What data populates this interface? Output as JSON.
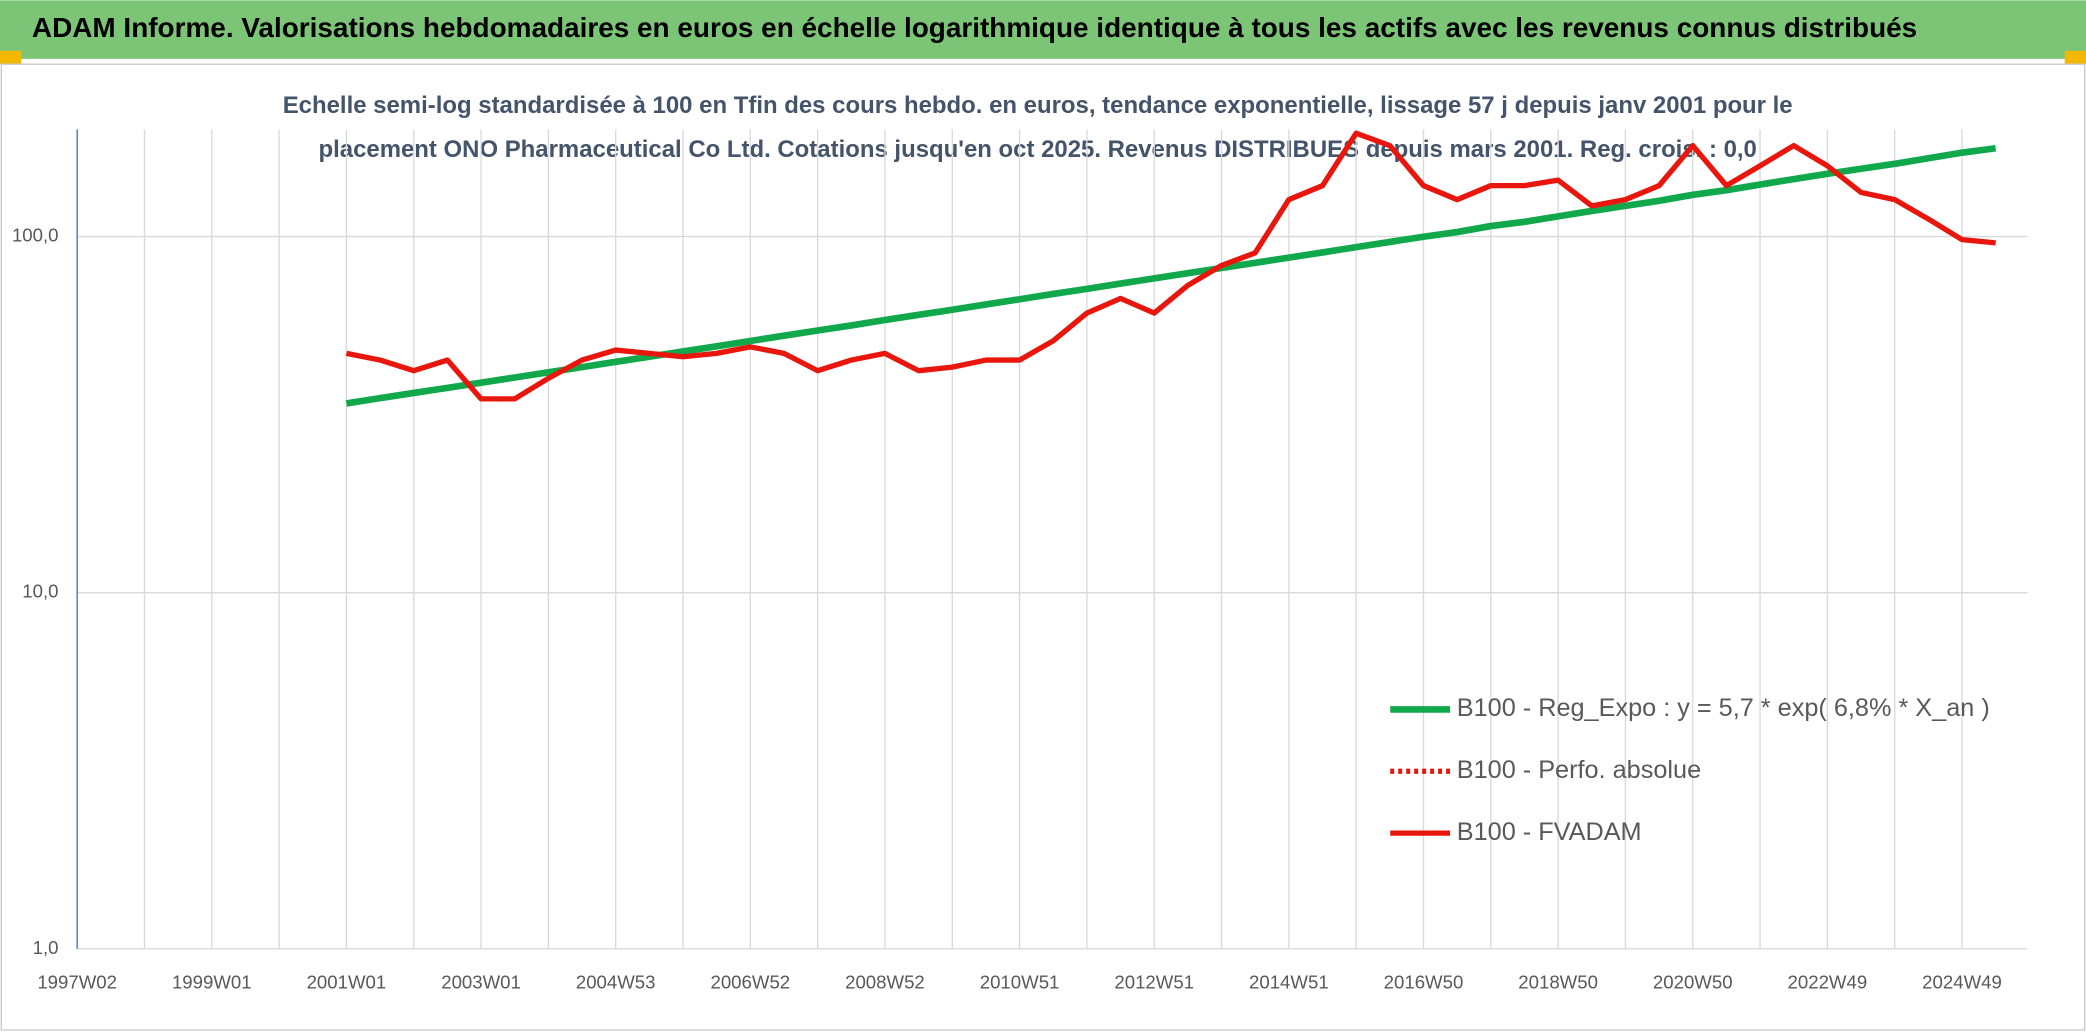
{
  "chart_data": {
    "type": "line",
    "title": "ADAM Informe. Valorisations hebdomadaires en euros en échelle logarithmique identique à tous les actifs avec les revenus connus distribués",
    "subtitle": [
      "Echelle semi-log standardisée à 100 en Tfin des cours hebdo. en euros, tendance exponentielle, lissage 57 j depuis janv 2001 pour le",
      "placement ONO Pharmaceutical Co Ltd. Cotations jusqu'en oct 2025. Revenus DISTRIBUES depuis mars 2001. Reg. crois. : 0,0"
    ],
    "categories": [
      "1997W02",
      null,
      null,
      null,
      "1999W01",
      null,
      null,
      null,
      "2001W01",
      null,
      null,
      null,
      "2003W01",
      null,
      null,
      null,
      "2004W53",
      null,
      null,
      null,
      "2006W52",
      null,
      null,
      null,
      "2008W52",
      null,
      null,
      null,
      "2010W51",
      null,
      null,
      null,
      "2012W51",
      null,
      null,
      null,
      "2014W51",
      null,
      null,
      null,
      "2016W50",
      null,
      null,
      null,
      "2018W50",
      null,
      null,
      null,
      "2020W50",
      null,
      null,
      null,
      "2022W49",
      null,
      null,
      null,
      "2024W49",
      null
    ],
    "log_scale": true,
    "grid": true,
    "legend_position": "right",
    "ylim": [
      1,
      200
    ],
    "yticks": [
      {
        "value": 1,
        "label": "1,0"
      },
      {
        "value": 10,
        "label": "10,0"
      },
      {
        "value": 100,
        "label": "100,0"
      }
    ],
    "series": [
      {
        "name": "B100 - Reg_Expo : y = 5,7 * exp( 6,8% *  X_an )",
        "color": "#11a84c",
        "style": "solid",
        "values": [
          null,
          null,
          null,
          null,
          null,
          null,
          null,
          null,
          34,
          35.2,
          36.4,
          37.6,
          38.9,
          40.2,
          41.6,
          43,
          44.5,
          46,
          47.6,
          49.2,
          50.9,
          52.7,
          54.5,
          56.3,
          58.3,
          60.3,
          62.3,
          64.5,
          66.7,
          69,
          71.3,
          73.8,
          76.3,
          78.9,
          81.6,
          84.4,
          87.3,
          90.3,
          93.4,
          96.6,
          99.9,
          103,
          107,
          110,
          114,
          118,
          122,
          126,
          131,
          135,
          140,
          145,
          150,
          155,
          160,
          166,
          172,
          177
        ]
      },
      {
        "name": "B100 - Perfo. absolue",
        "color": "#e8160c",
        "style": "dotted",
        "values": [
          null,
          null,
          null,
          null,
          null,
          null,
          null,
          null,
          null,
          null,
          null,
          null,
          null,
          null,
          null,
          null,
          null,
          null,
          null,
          null,
          null,
          null,
          null,
          null,
          null,
          null,
          null,
          null,
          null,
          null,
          null,
          null,
          null,
          null,
          null,
          null,
          null,
          null,
          null,
          null,
          null,
          null,
          null,
          null,
          null,
          null,
          null,
          null,
          null,
          null,
          null,
          null,
          null,
          null,
          null,
          null,
          null,
          null
        ]
      },
      {
        "name": "B100 - FVADAM",
        "color": "#e8160c",
        "style": "solid",
        "values": [
          null,
          null,
          null,
          null,
          null,
          null,
          null,
          null,
          47,
          45,
          42,
          45,
          35,
          35,
          40,
          45,
          48,
          47,
          46,
          47,
          49,
          47,
          42,
          45,
          47,
          42,
          43,
          45,
          45,
          51,
          61,
          67,
          61,
          73,
          83,
          90,
          127,
          139,
          195,
          180,
          139,
          127,
          139,
          139,
          144,
          122,
          127,
          139,
          180,
          139,
          158,
          180,
          158,
          133,
          127,
          112,
          98,
          96
        ]
      }
    ]
  }
}
